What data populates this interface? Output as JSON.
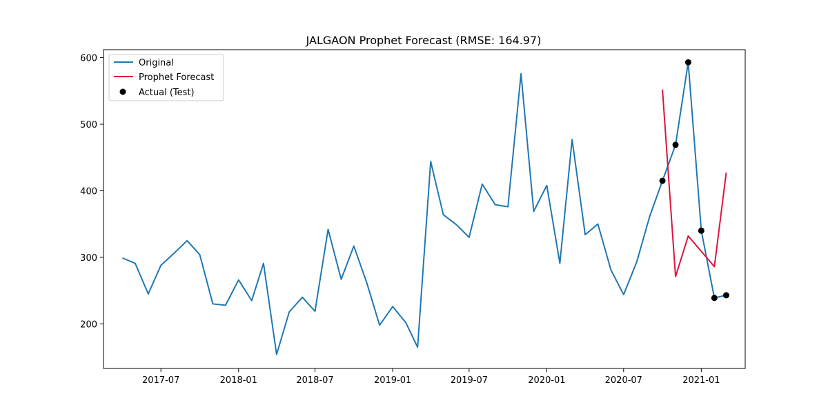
{
  "chart_data": {
    "type": "line",
    "title": "JALGAON Prophet Forecast (RMSE: 164.97)",
    "xlabel": "",
    "ylabel": "",
    "x_range": [
      "2017-02-15",
      "2021-04-15"
    ],
    "ylim": [
      133,
      612
    ],
    "x_ticks": [
      "2017-07",
      "2018-01",
      "2018-07",
      "2019-01",
      "2019-07",
      "2020-01",
      "2020-07",
      "2021-01"
    ],
    "y_ticks": [
      200,
      300,
      400,
      500,
      600
    ],
    "grid": false,
    "legend": {
      "placement": "top-left",
      "entries": [
        "Original",
        "Prophet Forecast",
        "Actual (Test)"
      ]
    },
    "series": [
      {
        "name": "Original",
        "kind": "line",
        "color": "#1f77b4",
        "points": [
          [
            "2017-04-01",
            299
          ],
          [
            "2017-05-01",
            291
          ],
          [
            "2017-06-01",
            245
          ],
          [
            "2017-07-01",
            288
          ],
          [
            "2017-08-01",
            306
          ],
          [
            "2017-09-01",
            325
          ],
          [
            "2017-10-01",
            304
          ],
          [
            "2017-11-01",
            230
          ],
          [
            "2017-12-01",
            228
          ],
          [
            "2018-01-01",
            266
          ],
          [
            "2018-02-01",
            235
          ],
          [
            "2018-03-01",
            291
          ],
          [
            "2018-04-01",
            154
          ],
          [
            "2018-05-01",
            218
          ],
          [
            "2018-06-01",
            240
          ],
          [
            "2018-07-01",
            219
          ],
          [
            "2018-08-01",
            342
          ],
          [
            "2018-09-01",
            267
          ],
          [
            "2018-10-01",
            317
          ],
          [
            "2018-11-01",
            261
          ],
          [
            "2018-12-01",
            198
          ],
          [
            "2019-01-01",
            226
          ],
          [
            "2019-02-01",
            202
          ],
          [
            "2019-03-01",
            165
          ],
          [
            "2019-04-01",
            444
          ],
          [
            "2019-05-01",
            364
          ],
          [
            "2019-06-01",
            349
          ],
          [
            "2019-07-01",
            330
          ],
          [
            "2019-08-01",
            410
          ],
          [
            "2019-09-01",
            379
          ],
          [
            "2019-10-01",
            376
          ],
          [
            "2019-11-01",
            576
          ],
          [
            "2019-12-01",
            369
          ],
          [
            "2020-01-01",
            408
          ],
          [
            "2020-02-01",
            291
          ],
          [
            "2020-03-01",
            477
          ],
          [
            "2020-04-01",
            334
          ],
          [
            "2020-05-01",
            350
          ],
          [
            "2020-06-01",
            281
          ],
          [
            "2020-07-01",
            244
          ],
          [
            "2020-08-01",
            293
          ],
          [
            "2020-09-01",
            362
          ],
          [
            "2020-10-01",
            415
          ],
          [
            "2020-11-01",
            469
          ],
          [
            "2020-12-01",
            593
          ],
          [
            "2021-01-01",
            340
          ],
          [
            "2021-02-01",
            239
          ],
          [
            "2021-03-01",
            243
          ]
        ]
      },
      {
        "name": "Prophet Forecast",
        "kind": "line",
        "color": "#dc143c",
        "points": [
          [
            "2020-10-01",
            552
          ],
          [
            "2020-11-01",
            271
          ],
          [
            "2020-12-01",
            332
          ],
          [
            "2021-01-01",
            309
          ],
          [
            "2021-02-01",
            286
          ],
          [
            "2021-03-01",
            427
          ]
        ]
      },
      {
        "name": "Actual (Test)",
        "kind": "scatter",
        "color": "#000000",
        "points": [
          [
            "2020-10-01",
            415
          ],
          [
            "2020-11-01",
            469
          ],
          [
            "2020-12-01",
            593
          ],
          [
            "2021-01-01",
            340
          ],
          [
            "2021-02-01",
            239
          ],
          [
            "2021-03-01",
            243
          ]
        ]
      }
    ]
  }
}
